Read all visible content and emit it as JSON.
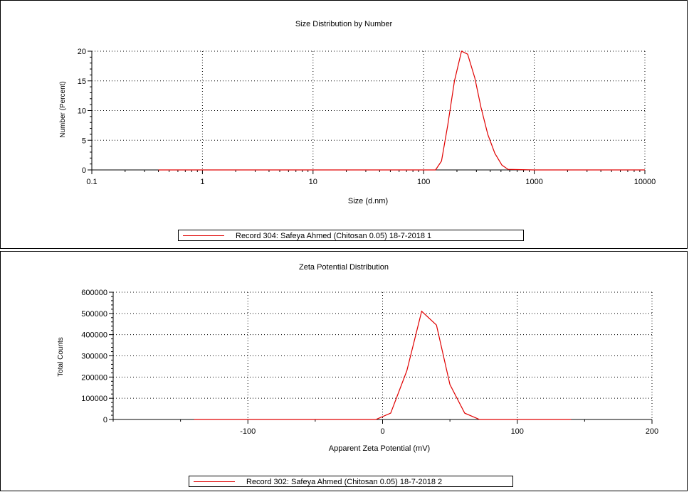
{
  "colors": {
    "series": "#e00000",
    "axis": "#000000",
    "grid": "#000000"
  },
  "chart_data": [
    {
      "type": "line",
      "title": "Size Distribution by Number",
      "xlabel": "Size (d.nm)",
      "ylabel": "Number (Percent)",
      "xscale": "log",
      "xlim": [
        0.1,
        10000
      ],
      "ylim": [
        0,
        20
      ],
      "xticks": [
        0.1,
        1,
        10,
        100,
        1000,
        10000
      ],
      "xtick_labels": [
        "0.1",
        "1",
        "10",
        "100",
        "1000",
        "10000"
      ],
      "yticks": [
        0,
        5,
        10,
        15,
        20
      ],
      "ytick_labels": [
        "0",
        "5",
        "10",
        "15",
        "20"
      ],
      "grid": true,
      "legend": "bottom-center",
      "series": [
        {
          "name": "Record 304: Safeya Ahmed (Chitosan 0.05) 18-7-2018 1",
          "x": [
            0.4,
            1,
            10,
            100,
            128,
            145,
            165,
            190,
            220,
            250,
            290,
            330,
            380,
            440,
            510,
            580,
            1000,
            10000
          ],
          "y": [
            0,
            0,
            0,
            0,
            0,
            1.5,
            7.5,
            15.0,
            20.0,
            19.5,
            15.5,
            10.5,
            6.0,
            2.8,
            0.8,
            0.1,
            0,
            0
          ]
        }
      ]
    },
    {
      "type": "line",
      "title": "Zeta Potential Distribution",
      "xlabel": "Apparent Zeta Potential (mV)",
      "ylabel": "Total Counts",
      "xlim": [
        -200,
        200
      ],
      "ylim": [
        0,
        600000
      ],
      "xticks": [
        -100,
        0,
        100,
        200
      ],
      "xtick_labels": [
        "-100",
        "0",
        "100",
        "200"
      ],
      "yticks": [
        0,
        100000,
        200000,
        300000,
        400000,
        500000,
        600000
      ],
      "ytick_labels": [
        "0",
        "100000",
        "200000",
        "300000",
        "400000",
        "500000",
        "600000"
      ],
      "grid": true,
      "legend": "bottom-center",
      "series": [
        {
          "name": "Record 302: Safeya Ahmed (Chitosan 0.05) 18-7-2018 2",
          "x": [
            -140,
            -5,
            6,
            18,
            29,
            40,
            50,
            61,
            72,
            140
          ],
          "y": [
            0,
            0,
            30000,
            230000,
            510000,
            445000,
            165000,
            30000,
            0,
            0
          ]
        }
      ]
    }
  ]
}
